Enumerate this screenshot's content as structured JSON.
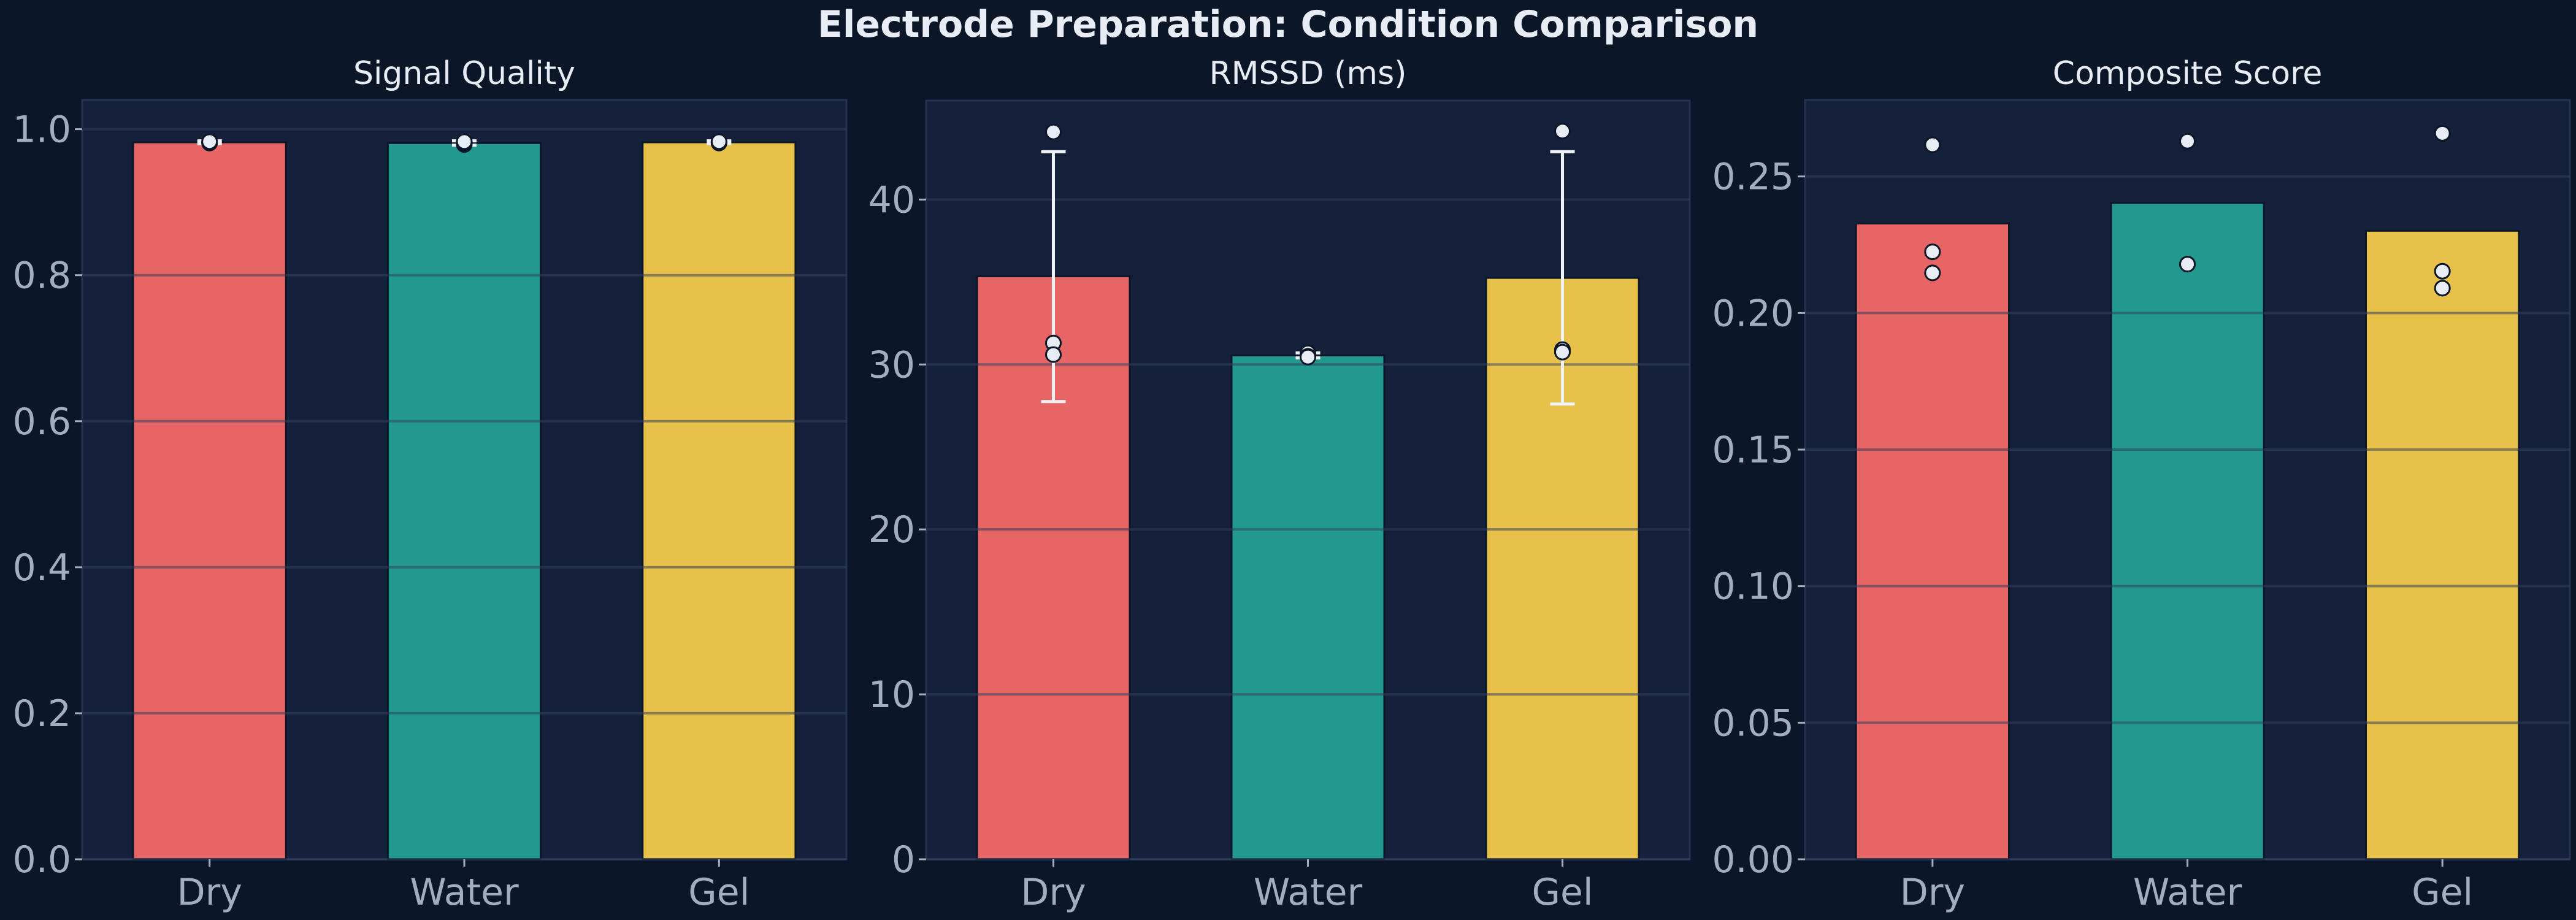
{
  "title": "Electrode Preparation: Condition Comparison",
  "colors": {
    "background": "#0b1628",
    "axes_background": "#15203a",
    "Dry": "#e86565",
    "Water": "#22998f",
    "Gel": "#e8c14b",
    "tick_text": "#a0aec0",
    "title_text": "#e8edf5",
    "points": "#e8edf5"
  },
  "chart_data": [
    {
      "type": "bar",
      "title": "Signal Quality",
      "categories": [
        "Dry",
        "Water",
        "Gel"
      ],
      "values": [
        0.982,
        0.981,
        0.982
      ],
      "error": [
        [
          0.98,
          0.984
        ],
        [
          0.978,
          0.984
        ],
        [
          0.98,
          0.984
        ]
      ],
      "points": [
        [
          0.981,
          0.982,
          0.983
        ],
        [
          0.979,
          0.981,
          0.983
        ],
        [
          0.981,
          0.982,
          0.983
        ]
      ],
      "ylim": [
        0,
        1.04
      ],
      "yticks": [
        "0.0",
        "0.2",
        "0.4",
        "0.6",
        "0.8",
        "1.0"
      ],
      "ytick_values": [
        0,
        0.2,
        0.4,
        0.6,
        0.8,
        1.0
      ],
      "grid": true
    },
    {
      "type": "bar",
      "title": "RMSSD (ms)",
      "categories": [
        "Dry",
        "Water",
        "Gel"
      ],
      "values": [
        35.35,
        30.55,
        35.25
      ],
      "error": [
        [
          27.75,
          42.9
        ],
        [
          30.4,
          30.7
        ],
        [
          27.6,
          42.9
        ]
      ],
      "points": [
        [
          44.1,
          31.3,
          30.6
        ],
        [
          30.7,
          30.5,
          30.45
        ],
        [
          44.15,
          30.9,
          30.75
        ]
      ],
      "ylim": [
        0,
        46
      ],
      "yticks": [
        "0",
        "10",
        "20",
        "30",
        "40"
      ],
      "ytick_values": [
        0,
        10,
        20,
        30,
        40
      ],
      "grid": true
    },
    {
      "type": "bar",
      "title": "Composite Score",
      "categories": [
        "Dry",
        "Water",
        "Gel"
      ],
      "values": [
        0.2328,
        0.2403,
        0.2301
      ],
      "error": null,
      "points": [
        [
          0.2616,
          0.2224,
          0.2147
        ],
        [
          0.2629,
          0.2179,
          0.2179
        ],
        [
          0.2658,
          0.2153,
          0.2091
        ]
      ],
      "ylim": [
        0,
        0.278
      ],
      "yticks": [
        "0.00",
        "0.05",
        "0.10",
        "0.15",
        "0.20",
        "0.25"
      ],
      "ytick_values": [
        0,
        0.05,
        0.1,
        0.15,
        0.2,
        0.25
      ],
      "grid": true
    }
  ]
}
